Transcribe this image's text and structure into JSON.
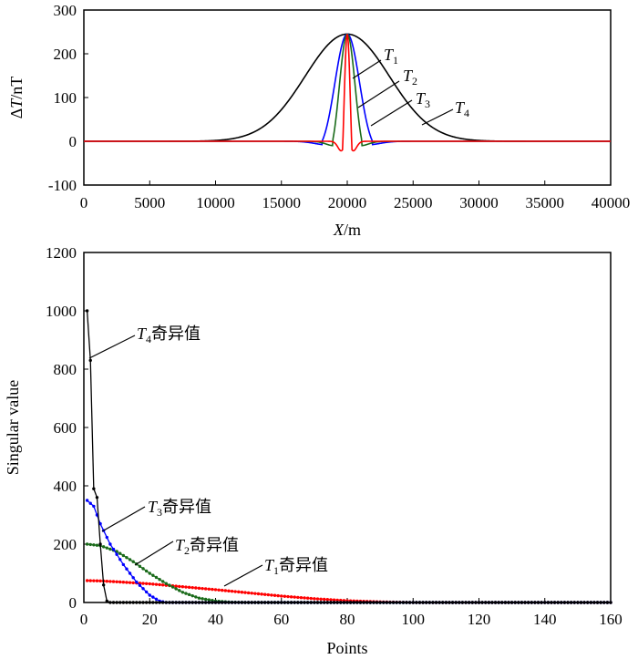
{
  "colors": {
    "t1": "#ff0000",
    "t2": "#1a6b1a",
    "t3": "#0000ff",
    "t4": "#000000",
    "axis": "#000000"
  },
  "chart_data": [
    {
      "type": "line",
      "xlabel_italic": "X",
      "xlabel_rest": "/m",
      "ylabel_prefix": "Δ",
      "ylabel_italic": "T",
      "ylabel_rest": "/nT",
      "xlim": [
        0,
        40000
      ],
      "ylim": [
        -100,
        300
      ],
      "xticks": [
        0,
        5000,
        10000,
        15000,
        20000,
        25000,
        30000,
        35000,
        40000
      ],
      "xtick_labels": [
        "0",
        "5000",
        "10000",
        "15000",
        "20000",
        "25000",
        "30000",
        "35000",
        "40000"
      ],
      "yticks": [
        -100,
        0,
        100,
        200,
        300
      ],
      "ytick_labels": [
        "-100",
        "0",
        "100",
        "200",
        "300"
      ],
      "peak_x": 20000,
      "peak_y": 245,
      "series": [
        {
          "name": "T4",
          "label_T": "T",
          "label_sub": "4",
          "color_key": "t4",
          "shape": "gauss",
          "sigma": 3200
        },
        {
          "name": "T3",
          "label_T": "T",
          "label_sub": "3",
          "color_key": "t3",
          "shape": "ricker",
          "sigma": 1150,
          "neg": 0.04
        },
        {
          "name": "T2",
          "label_T": "T",
          "label_sub": "2",
          "color_key": "t2",
          "shape": "ricker",
          "sigma": 750,
          "neg": 0.05
        },
        {
          "name": "T1",
          "label_T": "T",
          "label_sub": "1",
          "color_key": "t1",
          "shape": "ricker",
          "sigma": 330,
          "neg": 0.11
        }
      ]
    },
    {
      "type": "line",
      "xlabel": "Points",
      "ylabel": "Singular value",
      "xlim": [
        0,
        160
      ],
      "ylim": [
        0,
        1200
      ],
      "xticks": [
        0,
        20,
        40,
        60,
        80,
        100,
        120,
        140,
        160
      ],
      "xtick_labels": [
        "0",
        "20",
        "40",
        "60",
        "80",
        "100",
        "120",
        "140",
        "160"
      ],
      "yticks": [
        0,
        200,
        400,
        600,
        800,
        1000,
        1200
      ],
      "ytick_labels": [
        "0",
        "200",
        "400",
        "600",
        "800",
        "1000",
        "1200"
      ],
      "series": [
        {
          "name": "T1奇异值",
          "label_T": "T",
          "label_sub": "1",
          "label_suffix": "奇异值",
          "color_key": "t1",
          "points": [
            [
              1,
              75
            ],
            [
              5,
              74
            ],
            [
              10,
              71
            ],
            [
              20,
              64
            ],
            [
              30,
              54
            ],
            [
              40,
              44
            ],
            [
              50,
              33
            ],
            [
              60,
              22
            ],
            [
              70,
              13
            ],
            [
              80,
              6
            ],
            [
              90,
              2
            ],
            [
              100,
              0
            ],
            [
              160,
              0
            ]
          ]
        },
        {
          "name": "T2奇异值",
          "label_T": "T",
          "label_sub": "2",
          "label_suffix": "奇异值",
          "color_key": "t2",
          "points": [
            [
              1,
              200
            ],
            [
              5,
              195
            ],
            [
              10,
              175
            ],
            [
              15,
              140
            ],
            [
              20,
              100
            ],
            [
              25,
              65
            ],
            [
              30,
              35
            ],
            [
              35,
              15
            ],
            [
              40,
              5
            ],
            [
              45,
              1
            ],
            [
              50,
              0
            ],
            [
              160,
              0
            ]
          ]
        },
        {
          "name": "T3奇异值",
          "label_T": "T",
          "label_sub": "3",
          "label_suffix": "奇异值",
          "color_key": "t3",
          "points": [
            [
              1,
              350
            ],
            [
              3,
              330
            ],
            [
              5,
              270
            ],
            [
              8,
              200
            ],
            [
              12,
              130
            ],
            [
              16,
              70
            ],
            [
              20,
              25
            ],
            [
              23,
              5
            ],
            [
              25,
              0
            ],
            [
              160,
              0
            ]
          ]
        },
        {
          "name": "T4奇异值",
          "label_T": "T",
          "label_sub": "4",
          "label_suffix": "奇异值",
          "color_key": "t4",
          "points": [
            [
              1,
              1000
            ],
            [
              2,
              830
            ],
            [
              3,
              390
            ],
            [
              4,
              360
            ],
            [
              5,
              200
            ],
            [
              6,
              60
            ],
            [
              7,
              5
            ],
            [
              8,
              0
            ],
            [
              160,
              0
            ]
          ]
        }
      ]
    }
  ]
}
